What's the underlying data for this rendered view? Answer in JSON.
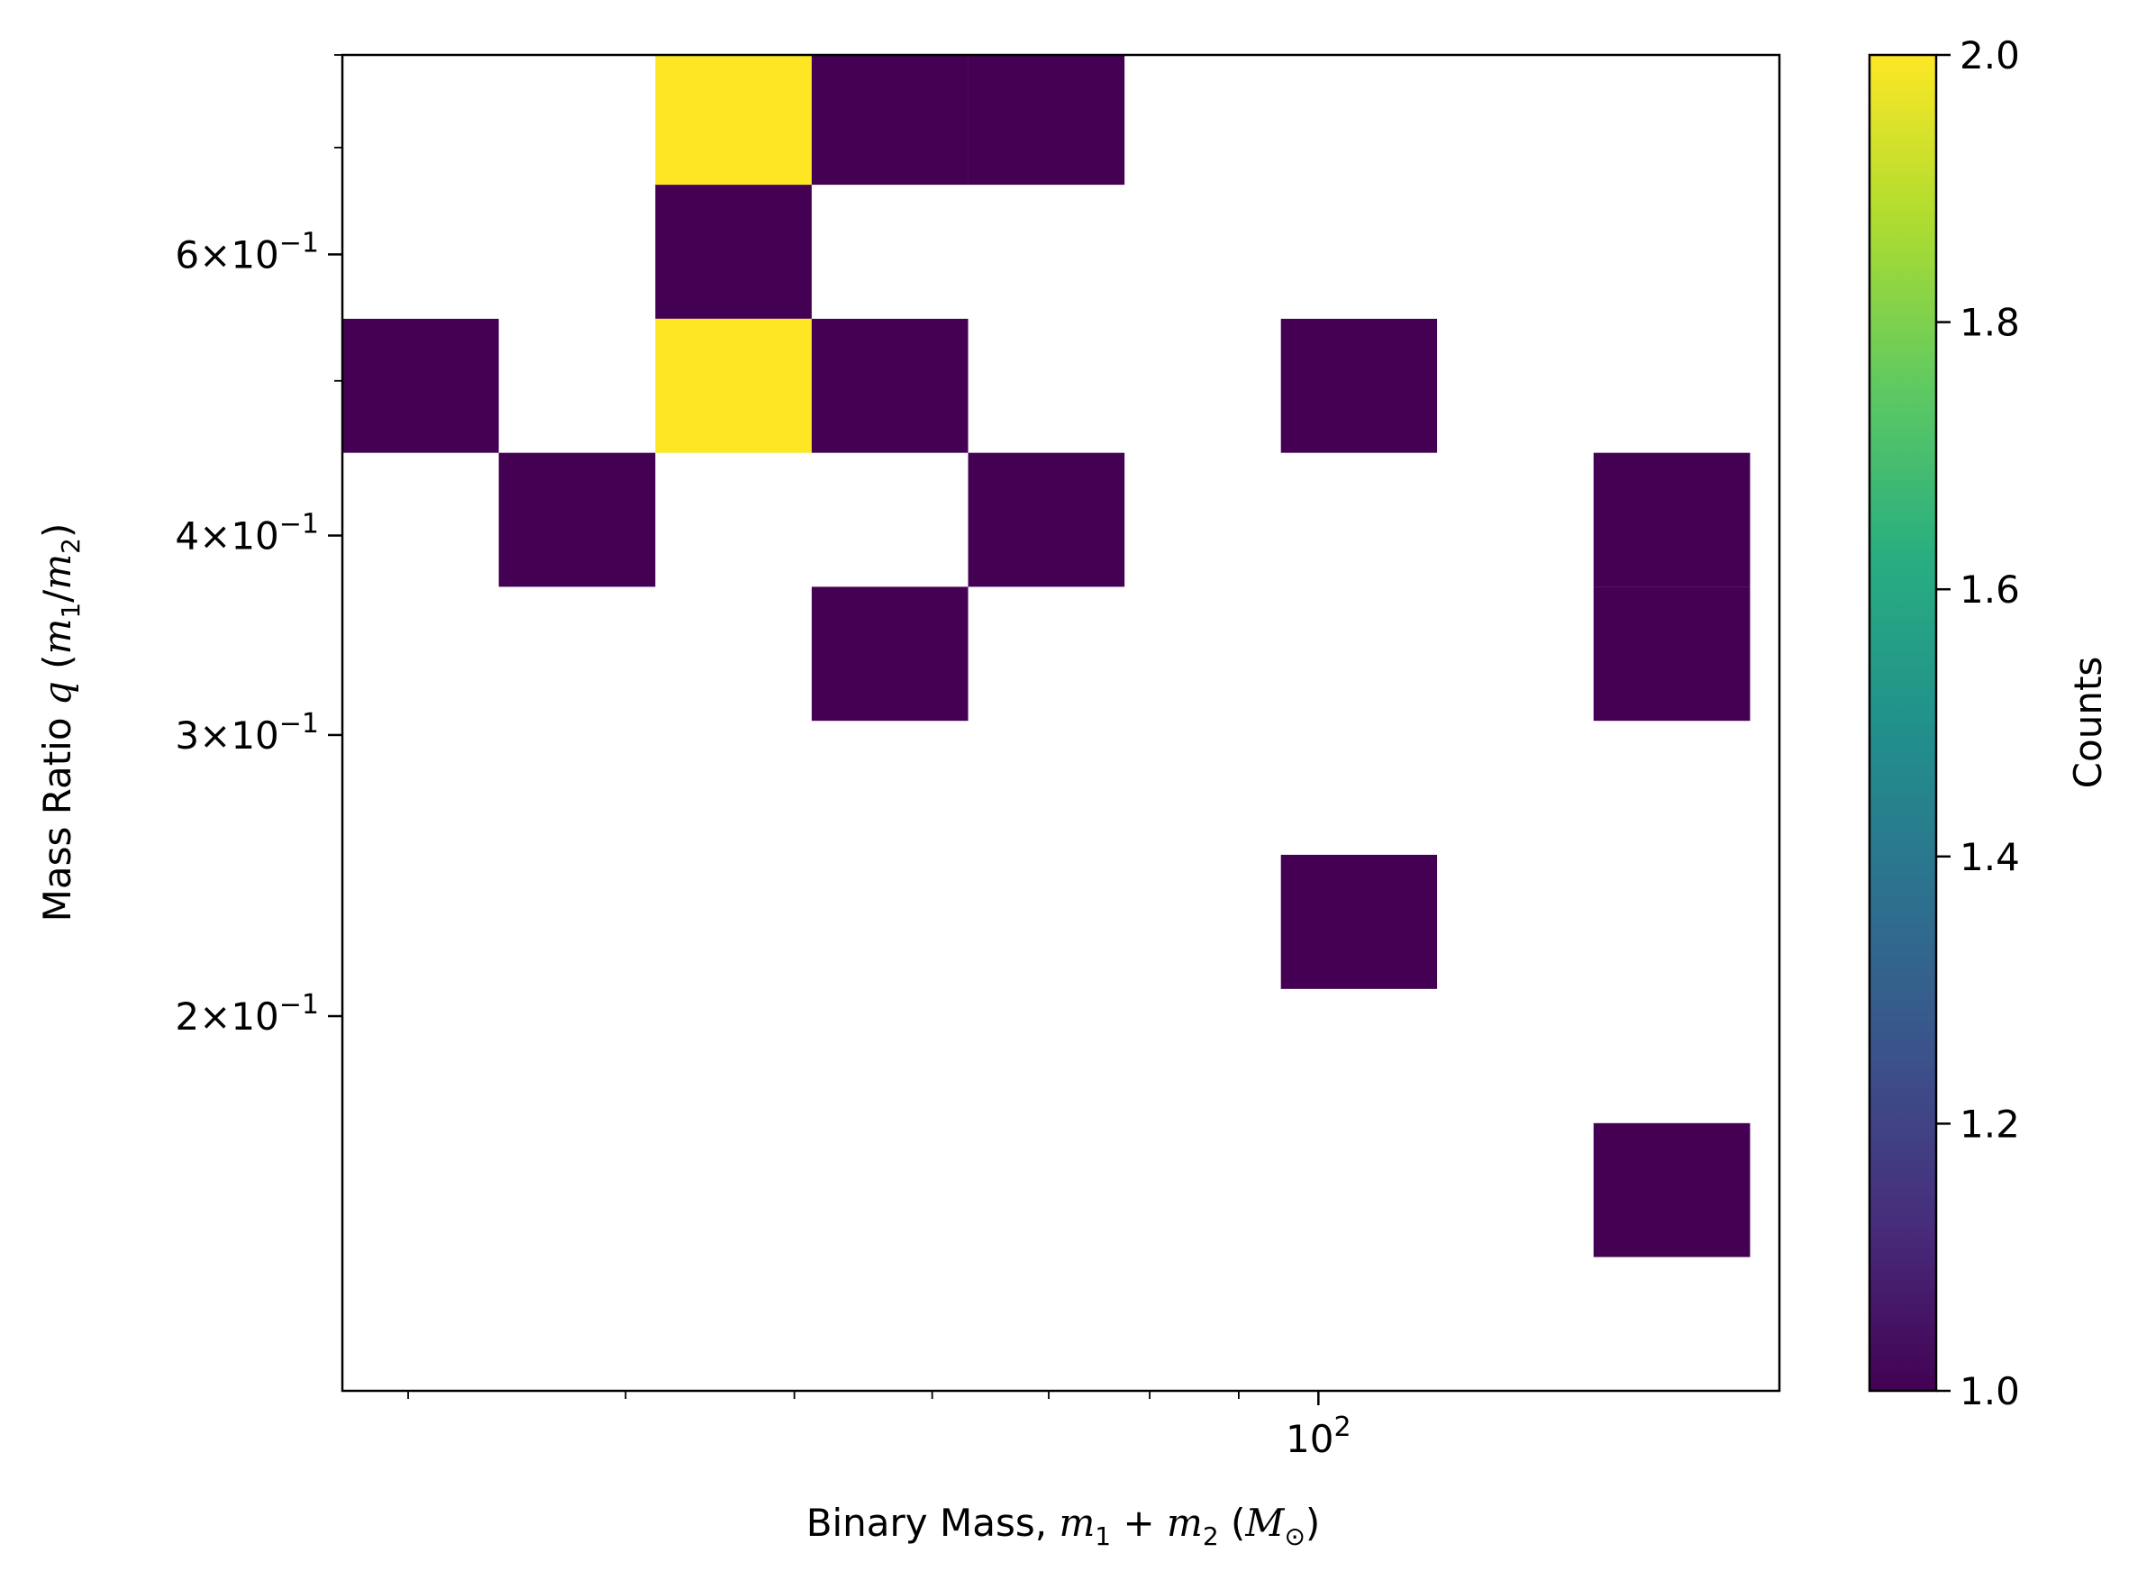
{
  "chart_data": {
    "type": "heatmap",
    "xscale": "log",
    "yscale": "log",
    "xlim": [
      27.5,
      184
    ],
    "ylim": [
      0.1165,
      0.8
    ],
    "x_edges": [
      27.5,
      33.82,
      41.6,
      51.16,
      62.92,
      77.38,
      95.16,
      117.0,
      143.9,
      177.0,
      217.6
    ],
    "y_edges": [
      0.1165,
      0.1413,
      0.1714,
      0.208,
      0.2524,
      0.3062,
      0.3715,
      0.4507,
      0.5468,
      0.6634,
      0.8
    ],
    "cells": [
      {
        "xbin": 2,
        "ybin": 9,
        "count": 2
      },
      {
        "xbin": 3,
        "ybin": 9,
        "count": 1
      },
      {
        "xbin": 4,
        "ybin": 9,
        "count": 1
      },
      {
        "xbin": 2,
        "ybin": 8,
        "count": 1
      },
      {
        "xbin": 0,
        "ybin": 7,
        "count": 1
      },
      {
        "xbin": 2,
        "ybin": 7,
        "count": 2
      },
      {
        "xbin": 3,
        "ybin": 7,
        "count": 1
      },
      {
        "xbin": 6,
        "ybin": 7,
        "count": 1
      },
      {
        "xbin": 1,
        "ybin": 6,
        "count": 1
      },
      {
        "xbin": 4,
        "ybin": 6,
        "count": 1
      },
      {
        "xbin": 8,
        "ybin": 6,
        "count": 1
      },
      {
        "xbin": 3,
        "ybin": 5,
        "count": 1
      },
      {
        "xbin": 8,
        "ybin": 5,
        "count": 1
      },
      {
        "xbin": 6,
        "ybin": 3,
        "count": 1
      },
      {
        "xbin": 8,
        "ybin": 1,
        "count": 1
      }
    ],
    "x_major_ticks": [
      {
        "value": 100,
        "base": "10",
        "exp": "2"
      }
    ],
    "x_minor_ticks": [
      30,
      40,
      50,
      60,
      70,
      80,
      90,
      200
    ],
    "y_major_ticks": [
      {
        "value": 0.2,
        "mant": "2",
        "exp": "−1"
      },
      {
        "value": 0.3,
        "mant": "3",
        "exp": "−1"
      },
      {
        "value": 0.4,
        "mant": "4",
        "exp": "−1"
      },
      {
        "value": 0.6,
        "mant": "6",
        "exp": "−1"
      }
    ],
    "y_minor_ticks": [
      0.5,
      0.7,
      0.8
    ],
    "xlabel": "Binary Mass, m1 + m2 (M⊙)",
    "ylabel": "Mass Ratio q (m1/m2)",
    "colorbar": {
      "label": "Counts",
      "range": [
        1.0,
        2.0
      ],
      "colormap": "viridis",
      "ticks": [
        "1.0",
        "1.2",
        "1.4",
        "1.6",
        "1.8",
        "2.0"
      ],
      "tick_values": [
        1.0,
        1.2,
        1.4,
        1.6,
        1.8,
        2.0
      ]
    },
    "colors": {
      "low": "#440154",
      "high": "#fde725"
    }
  }
}
